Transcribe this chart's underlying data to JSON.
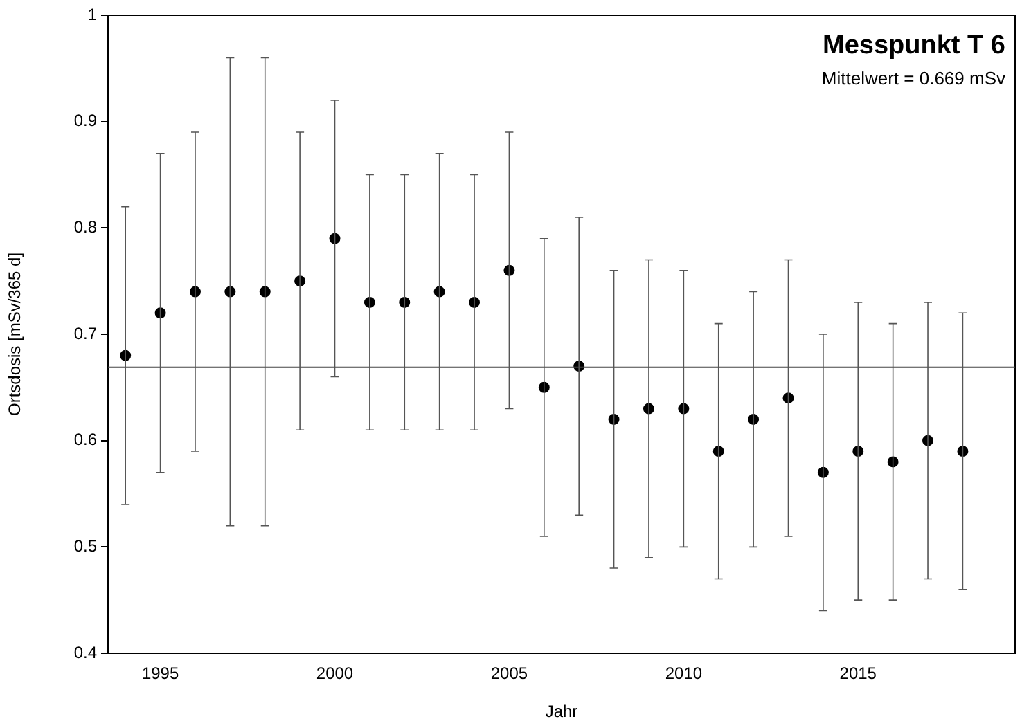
{
  "chart_data": {
    "type": "scatter",
    "title": "Messpunkt T 6",
    "subtitle": "Mittelwert = 0.669 mSv",
    "xlabel": "Jahr",
    "ylabel": "Ortsdosis [mSv/365 d]",
    "x": [
      1994,
      1995,
      1996,
      1997,
      1998,
      1999,
      2000,
      2001,
      2002,
      2003,
      2004,
      2005,
      2006,
      2007,
      2008,
      2009,
      2010,
      2011,
      2012,
      2013,
      2014,
      2015,
      2016,
      2017,
      2018
    ],
    "series": [
      {
        "color": "#000000",
        "values": [
          0.68,
          0.72,
          0.74,
          0.74,
          0.74,
          0.75,
          0.79,
          0.73,
          0.73,
          0.74,
          0.73,
          0.76,
          0.65,
          0.67,
          0.62,
          0.63,
          0.63,
          0.59,
          0.62,
          0.64,
          0.57,
          0.59,
          0.58,
          0.6,
          0.59
        ],
        "errors": [
          [
            0.54,
            0.82
          ],
          [
            0.57,
            0.87
          ],
          [
            0.59,
            0.89
          ],
          [
            0.52,
            0.96
          ],
          [
            0.52,
            0.96
          ],
          [
            0.61,
            0.89
          ],
          [
            0.66,
            0.92
          ],
          [
            0.61,
            0.85
          ],
          [
            0.61,
            0.85
          ],
          [
            0.61,
            0.87
          ],
          [
            0.61,
            0.85
          ],
          [
            0.63,
            0.89
          ],
          [
            0.51,
            0.79
          ],
          [
            0.53,
            0.81
          ],
          [
            0.48,
            0.76
          ],
          [
            0.49,
            0.77
          ],
          [
            0.5,
            0.76
          ],
          [
            0.47,
            0.71
          ],
          [
            0.5,
            0.74
          ],
          [
            0.51,
            0.77
          ],
          [
            0.44,
            0.7
          ],
          [
            0.45,
            0.73
          ],
          [
            0.45,
            0.71
          ],
          [
            0.47,
            0.73
          ],
          [
            0.46,
            0.72
          ]
        ]
      }
    ],
    "ref_lines": [
      {
        "axis": "y",
        "value": 0.669,
        "color": "#444444"
      }
    ],
    "xlim": [
      1993.5,
      2019.5
    ],
    "xticks": [
      1995,
      2000,
      2005,
      2010,
      2015
    ],
    "ylim": [
      0.4,
      1
    ],
    "yticks": [
      0.4,
      0.5,
      0.6,
      0.7,
      0.8,
      0.9,
      1
    ],
    "grid": false,
    "legend": false,
    "marker": "circle"
  }
}
